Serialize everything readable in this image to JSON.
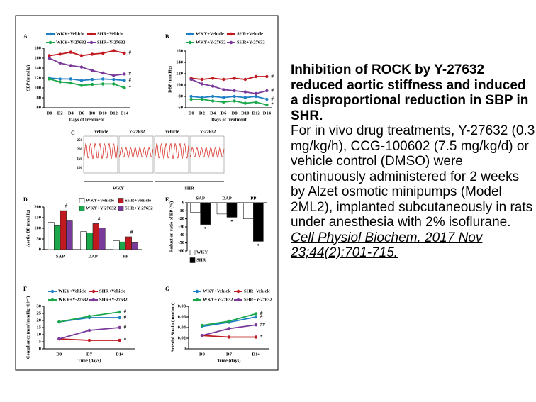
{
  "chart_data": [
    {
      "type": "line",
      "label": "A",
      "ylabel": "SBP (mmHg)",
      "xlabel": "Days of treatment",
      "categories": [
        "D0",
        "D2",
        "D4",
        "D6",
        "D8",
        "D10",
        "D12",
        "D14"
      ],
      "series": [
        {
          "name": "WKY+Vehicle",
          "color": "#1f7fc4",
          "values": [
            120,
            118,
            118,
            115,
            117,
            118,
            117,
            115
          ]
        },
        {
          "name": "SHR+Vehicle",
          "color": "#c0191f",
          "values": [
            165,
            168,
            172,
            165,
            168,
            170,
            175,
            170
          ]
        },
        {
          "name": "WKY+Y-27632",
          "color": "#1aa84a",
          "values": [
            118,
            112,
            110,
            105,
            107,
            108,
            108,
            100
          ]
        },
        {
          "name": "SHR+Y-27632",
          "color": "#7a3a9a",
          "values": [
            160,
            150,
            145,
            142,
            135,
            130,
            125,
            128
          ]
        }
      ],
      "ylim": [
        60,
        180
      ],
      "yticks": [
        60,
        80,
        100,
        120,
        140,
        160,
        180
      ],
      "annotations": [
        "#",
        "#",
        "*",
        "#"
      ]
    },
    {
      "type": "line",
      "label": "B",
      "ylabel": "DBP (mmHg)",
      "xlabel": "Days of treatment",
      "categories": [
        "D0",
        "D2",
        "D4",
        "D6",
        "D8",
        "D10",
        "D12",
        "D14"
      ],
      "series": [
        {
          "name": "WKY+Vehicle",
          "color": "#1f7fc4",
          "values": [
            80,
            78,
            80,
            78,
            80,
            78,
            80,
            75
          ]
        },
        {
          "name": "SHR+Vehicle",
          "color": "#c0191f",
          "values": [
            112,
            110,
            112,
            110,
            112,
            110,
            115,
            115
          ]
        },
        {
          "name": "WKY+Y-27632",
          "color": "#1aa84a",
          "values": [
            75,
            75,
            72,
            70,
            72,
            68,
            70,
            65
          ]
        },
        {
          "name": "SHR+Y-27632",
          "color": "#7a3a9a",
          "values": [
            110,
            102,
            98,
            92,
            90,
            88,
            85,
            90
          ]
        }
      ],
      "ylim": [
        60,
        160
      ],
      "yticks": [
        60,
        80,
        100,
        120,
        140,
        160
      ],
      "annotations": [
        "#",
        "#",
        "*",
        "#"
      ]
    },
    {
      "type": "bar",
      "label": "D",
      "ylabel": "Aortic BP (mmHg)",
      "categories": [
        "SAP",
        "DAP",
        "PP"
      ],
      "series": [
        {
          "name": "WKY+Vehicle",
          "color": "#ffffff",
          "values": [
            128,
            85,
            42
          ]
        },
        {
          "name": "WKY+Y-27632",
          "color": "#1aa84a",
          "values": [
            112,
            78,
            36
          ]
        },
        {
          "name": "SHR+Vehicle",
          "color": "#c0191f",
          "values": [
            183,
            122,
            60
          ]
        },
        {
          "name": "SHR+Y-27632",
          "color": "#7a3a9a",
          "values": [
            135,
            102,
            32
          ]
        }
      ],
      "ylim": [
        0,
        200
      ],
      "yticks": [
        0,
        50,
        100,
        150,
        200
      ],
      "annotations": [
        "#",
        "#",
        "#"
      ]
    },
    {
      "type": "bar",
      "label": "E",
      "ylabel": "Reduction ratio of BP (%)",
      "categories": [
        "SAP",
        "DAP",
        "PP"
      ],
      "series": [
        {
          "name": "WKY",
          "color": "#ffffff",
          "values": [
            -12,
            -14,
            -20
          ]
        },
        {
          "name": "SHR",
          "color": "#000000",
          "values": [
            -27,
            -18,
            -48
          ]
        }
      ],
      "ylim": [
        -60,
        0
      ],
      "yticks": [
        -60,
        -50,
        -40,
        -30,
        -20,
        -10,
        0
      ],
      "annotations": [
        "*",
        "*",
        "*"
      ]
    },
    {
      "type": "line",
      "label": "F",
      "ylabel": "Compliance (mm²/mmHg×10⁻³)",
      "xlabel": "Time (days)",
      "categories": [
        "D0",
        "D7",
        "D14"
      ],
      "series": [
        {
          "name": "WKY+Vehicle",
          "color": "#1f7fc4",
          "values": [
            19,
            22,
            22
          ]
        },
        {
          "name": "SHR+Vehicle",
          "color": "#c0191f",
          "values": [
            7,
            6,
            6
          ]
        },
        {
          "name": "WKY+Y-27632",
          "color": "#1aa84a",
          "values": [
            19,
            23,
            26
          ]
        },
        {
          "name": "SHR+Y-27632",
          "color": "#7a3a9a",
          "values": [
            7,
            13,
            15
          ]
        }
      ],
      "ylim": [
        0,
        30
      ],
      "yticks": [
        0,
        5,
        10,
        15,
        20,
        25,
        30
      ],
      "annotations": [
        "#",
        "*",
        "#",
        "#"
      ]
    },
    {
      "type": "line",
      "label": "G",
      "ylabel": "Arterial Strain (mm/mm)",
      "xlabel": "Time (days)",
      "categories": [
        "D0",
        "D7",
        "D14"
      ],
      "series": [
        {
          "name": "WKY+Vehicle",
          "color": "#1f7fc4",
          "values": [
            0.042,
            0.05,
            0.06
          ]
        },
        {
          "name": "SHR+Vehicle",
          "color": "#c0191f",
          "values": [
            0.025,
            0.022,
            0.022
          ]
        },
        {
          "name": "WKY+Y-27632",
          "color": "#1aa84a",
          "values": [
            0.044,
            0.052,
            0.066
          ]
        },
        {
          "name": "SHR+Y-27632",
          "color": "#7a3a9a",
          "values": [
            0.025,
            0.038,
            0.045
          ]
        }
      ],
      "ylim": [
        0,
        0.08
      ],
      "yticks": [
        0,
        0.02,
        0.04,
        0.06,
        0.08
      ],
      "annotations": [
        "#",
        "*",
        "#",
        "##"
      ]
    }
  ],
  "panel_c": {
    "label": "C",
    "column_labels": [
      "vehicle",
      "Y-27632",
      "vehicle",
      "Y-27632"
    ],
    "group_labels": [
      "WKY",
      "SHR"
    ],
    "yticks": [
      "250",
      "200",
      "150",
      "100"
    ]
  },
  "caption": {
    "title": "Inhibition of ROCK by Y-27632 reduced aortic stiffness and induced a disproportional reduction in SBP in SHR.",
    "body": "For in vivo drug treatments, Y-27632 (0.3 mg/kg/h), CCG-100602 (7.5 mg/kg/d) or vehicle control (DMSO) were continuously administered for 2 weeks by Alzet osmotic minipumps (Model 2ML2), implanted subcutaneously in rats under anesthesia with 2% isoflurane.",
    "citation": "Cell Physiol Biochem. 2017 Nov 23;44(2):701-715."
  }
}
